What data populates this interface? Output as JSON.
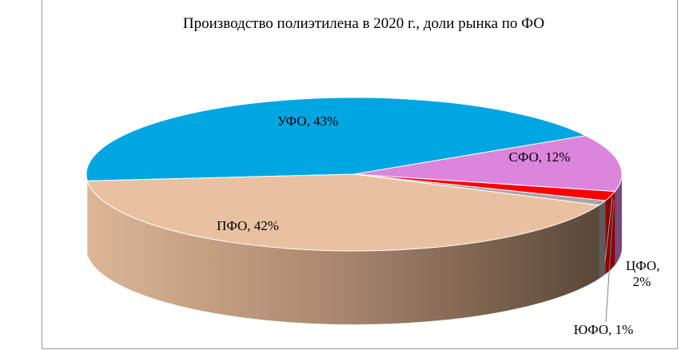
{
  "chart_data": {
    "type": "pie3d",
    "title": "Производство полиэтилена в 2020 г., доли рынка по ФО",
    "labels": [
      "УФО, 43%",
      "СФО, 12%",
      "ЦФО, 2%",
      "ЮФО, 1%",
      "ПФО, 42%"
    ],
    "values": [
      43,
      12,
      2,
      1,
      42
    ],
    "colors": [
      "#00a6e2",
      "#dc85dc",
      "#ff0000",
      "#a6a6a6",
      "#e9c1a2"
    ]
  }
}
